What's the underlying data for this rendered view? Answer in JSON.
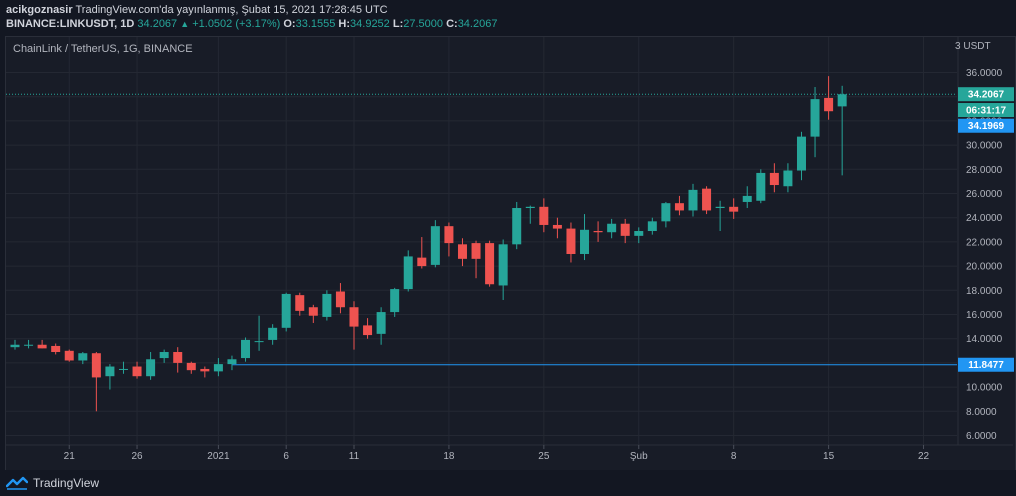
{
  "header": {
    "author": "acikgoznasir",
    "publish_text": "TradingView.com'da yayınlanmış, Şubat 15, 2021 17:28:45 UTC",
    "symbol_line": "BINANCE:LINKUSDT, 1D",
    "last_price": "34.2067",
    "change": "+1.0502 (+3.17%)",
    "open_label": "O:",
    "open": "33.1555",
    "high_label": "H:",
    "high": "34.9252",
    "low_label": "L:",
    "low": "27.5000",
    "close_label": "C:",
    "close": "34.2067"
  },
  "chart_title": "ChainLink / TetherUS, 1G, BINANCE",
  "currency": "USDT",
  "footer": {
    "brand": "TradingView",
    "logo_icon": "tradingview-logo-icon"
  },
  "colors": {
    "up": "#26a69a",
    "down": "#ef5350",
    "background": "#181c27",
    "line": "#2196f3"
  },
  "chart_data": {
    "type": "candlestick",
    "title": "ChainLink / TetherUS, 1G, BINANCE",
    "ylim": [
      5,
      38
    ],
    "y_ticks": [
      6,
      8,
      10,
      12,
      14,
      16,
      18,
      20,
      22,
      24,
      26,
      28,
      30,
      32,
      34,
      36
    ],
    "y_tick_labels": [
      "6.0000",
      "8.0000",
      "10.0000",
      "12.0000",
      "14.0000",
      "16.0000",
      "18.0000",
      "20.0000",
      "22.0000",
      "24.0000",
      "26.0000",
      "28.0000",
      "30.0000",
      "32.0000",
      "34.0000",
      "36.0000"
    ],
    "x_labels": [
      {
        "index": 4,
        "label": "21"
      },
      {
        "index": 9,
        "label": "26"
      },
      {
        "index": 15,
        "label": "2021"
      },
      {
        "index": 20,
        "label": "6"
      },
      {
        "index": 25,
        "label": "11"
      },
      {
        "index": 32,
        "label": "18"
      },
      {
        "index": 39,
        "label": "25"
      },
      {
        "index": 46,
        "label": "Şub"
      },
      {
        "index": 53,
        "label": "8"
      },
      {
        "index": 60,
        "label": "15"
      },
      {
        "index": 67,
        "label": "22"
      }
    ],
    "candles": [
      {
        "o": 13.3,
        "h": 13.9,
        "l": 13.1,
        "c": 13.5
      },
      {
        "o": 13.5,
        "h": 13.9,
        "l": 13.2,
        "c": 13.5
      },
      {
        "o": 13.5,
        "h": 13.9,
        "l": 13.2,
        "c": 13.2
      },
      {
        "o": 13.4,
        "h": 13.6,
        "l": 12.7,
        "c": 12.9
      },
      {
        "o": 13.0,
        "h": 13.1,
        "l": 12.1,
        "c": 12.2
      },
      {
        "o": 12.2,
        "h": 12.9,
        "l": 11.9,
        "c": 12.8
      },
      {
        "o": 12.8,
        "h": 12.9,
        "l": 8.0,
        "c": 10.8
      },
      {
        "o": 10.9,
        "h": 11.9,
        "l": 9.8,
        "c": 11.7
      },
      {
        "o": 11.5,
        "h": 12.1,
        "l": 11.1,
        "c": 11.5
      },
      {
        "o": 11.7,
        "h": 12.1,
        "l": 10.7,
        "c": 10.9
      },
      {
        "o": 10.9,
        "h": 12.9,
        "l": 10.6,
        "c": 12.3
      },
      {
        "o": 12.4,
        "h": 13.1,
        "l": 12.0,
        "c": 12.9
      },
      {
        "o": 12.9,
        "h": 13.3,
        "l": 11.2,
        "c": 12.0
      },
      {
        "o": 12.0,
        "h": 12.1,
        "l": 11.1,
        "c": 11.4
      },
      {
        "o": 11.5,
        "h": 11.7,
        "l": 10.8,
        "c": 11.3
      },
      {
        "o": 11.3,
        "h": 12.4,
        "l": 10.9,
        "c": 11.9
      },
      {
        "o": 11.9,
        "h": 12.6,
        "l": 11.4,
        "c": 12.3
      },
      {
        "o": 12.4,
        "h": 14.1,
        "l": 12.1,
        "c": 13.9
      },
      {
        "o": 13.8,
        "h": 15.9,
        "l": 13.0,
        "c": 13.8
      },
      {
        "o": 13.9,
        "h": 15.2,
        "l": 13.5,
        "c": 14.9
      },
      {
        "o": 14.9,
        "h": 17.8,
        "l": 14.6,
        "c": 17.7
      },
      {
        "o": 17.6,
        "h": 17.8,
        "l": 15.9,
        "c": 16.3
      },
      {
        "o": 16.6,
        "h": 16.8,
        "l": 15.3,
        "c": 15.9
      },
      {
        "o": 15.8,
        "h": 18.0,
        "l": 15.5,
        "c": 17.7
      },
      {
        "o": 17.9,
        "h": 18.6,
        "l": 16.1,
        "c": 16.6
      },
      {
        "o": 16.6,
        "h": 17.1,
        "l": 13.1,
        "c": 15.0
      },
      {
        "o": 15.1,
        "h": 15.7,
        "l": 14.0,
        "c": 14.3
      },
      {
        "o": 14.4,
        "h": 16.6,
        "l": 13.5,
        "c": 16.2
      },
      {
        "o": 16.2,
        "h": 18.2,
        "l": 15.8,
        "c": 18.1
      },
      {
        "o": 18.1,
        "h": 21.3,
        "l": 17.9,
        "c": 20.8
      },
      {
        "o": 20.7,
        "h": 22.4,
        "l": 19.8,
        "c": 20.0
      },
      {
        "o": 20.1,
        "h": 23.8,
        "l": 19.9,
        "c": 23.3
      },
      {
        "o": 23.3,
        "h": 23.6,
        "l": 20.8,
        "c": 21.9
      },
      {
        "o": 21.8,
        "h": 22.3,
        "l": 20.0,
        "c": 20.6
      },
      {
        "o": 21.9,
        "h": 22.1,
        "l": 19.0,
        "c": 20.6
      },
      {
        "o": 21.9,
        "h": 22.1,
        "l": 18.3,
        "c": 18.5
      },
      {
        "o": 18.4,
        "h": 22.2,
        "l": 17.2,
        "c": 21.8
      },
      {
        "o": 21.8,
        "h": 25.3,
        "l": 21.4,
        "c": 24.8
      },
      {
        "o": 24.8,
        "h": 25.0,
        "l": 23.5,
        "c": 24.9
      },
      {
        "o": 24.9,
        "h": 25.6,
        "l": 22.8,
        "c": 23.4
      },
      {
        "o": 23.4,
        "h": 24.0,
        "l": 22.3,
        "c": 23.1
      },
      {
        "o": 23.1,
        "h": 23.6,
        "l": 20.3,
        "c": 21.0
      },
      {
        "o": 21.0,
        "h": 24.3,
        "l": 20.5,
        "c": 23.0
      },
      {
        "o": 22.9,
        "h": 23.7,
        "l": 22.0,
        "c": 22.8
      },
      {
        "o": 22.8,
        "h": 23.9,
        "l": 22.3,
        "c": 23.5
      },
      {
        "o": 23.5,
        "h": 23.9,
        "l": 21.9,
        "c": 22.5
      },
      {
        "o": 22.5,
        "h": 23.2,
        "l": 21.9,
        "c": 22.9
      },
      {
        "o": 22.9,
        "h": 24.0,
        "l": 22.6,
        "c": 23.7
      },
      {
        "o": 23.7,
        "h": 25.3,
        "l": 23.2,
        "c": 25.2
      },
      {
        "o": 25.2,
        "h": 25.8,
        "l": 24.2,
        "c": 24.6
      },
      {
        "o": 24.6,
        "h": 26.8,
        "l": 24.1,
        "c": 26.3
      },
      {
        "o": 26.4,
        "h": 26.6,
        "l": 24.3,
        "c": 24.6
      },
      {
        "o": 24.8,
        "h": 25.4,
        "l": 22.9,
        "c": 24.9
      },
      {
        "o": 24.9,
        "h": 25.6,
        "l": 23.9,
        "c": 24.5
      },
      {
        "o": 25.3,
        "h": 26.6,
        "l": 24.8,
        "c": 25.8
      },
      {
        "o": 25.4,
        "h": 28.0,
        "l": 25.2,
        "c": 27.7
      },
      {
        "o": 27.7,
        "h": 28.5,
        "l": 26.1,
        "c": 26.7
      },
      {
        "o": 26.6,
        "h": 28.5,
        "l": 26.1,
        "c": 27.9
      },
      {
        "o": 27.9,
        "h": 31.1,
        "l": 27.1,
        "c": 30.7
      },
      {
        "o": 30.7,
        "h": 34.8,
        "l": 29.0,
        "c": 33.8
      },
      {
        "o": 33.9,
        "h": 35.7,
        "l": 32.1,
        "c": 32.8
      },
      {
        "o": 33.2,
        "h": 34.9,
        "l": 27.5,
        "c": 34.2
      }
    ],
    "price_lines": [
      {
        "value": 34.2067,
        "label": "34.2067",
        "color": "#26a69a",
        "style": "dotted"
      },
      {
        "value": 11.8477,
        "label": "11.8477",
        "color": "#2196f3",
        "style": "solid",
        "start_index": 16
      }
    ],
    "badges": [
      {
        "value": 34.2067,
        "label": "34.2067",
        "color": "#26a69a"
      },
      {
        "value": 32.9,
        "label": "06:31:17",
        "color": "#26a69a"
      },
      {
        "value": 31.6,
        "label": "34.1969",
        "color": "#2196f3"
      },
      {
        "value": 11.8477,
        "label": "11.8477",
        "color": "#2196f3"
      }
    ]
  }
}
